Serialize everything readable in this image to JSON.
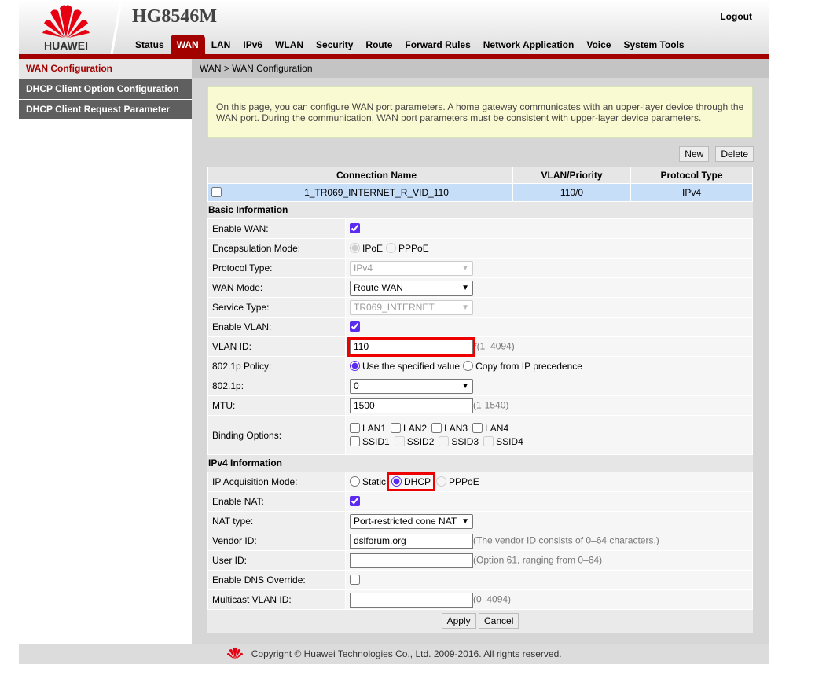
{
  "header": {
    "brand": "HUAWEI",
    "model": "HG8546M",
    "logout": "Logout",
    "tabs": [
      "Status",
      "WAN",
      "LAN",
      "IPv6",
      "WLAN",
      "Security",
      "Route",
      "Forward Rules",
      "Network Application",
      "Voice",
      "System Tools"
    ],
    "active_tab": "WAN"
  },
  "sidebar": {
    "items": [
      "WAN Configuration",
      "DHCP Client Option Configuration",
      "DHCP Client Request Parameter"
    ],
    "active": 0
  },
  "breadcrumb": "WAN > WAN Configuration",
  "info": "On this page, you can configure WAN port parameters. A home gateway communicates with an upper-layer device through the WAN port. During the communication, WAN port parameters must be consistent with upper-layer device parameters.",
  "buttons": {
    "new": "New",
    "delete": "Delete",
    "apply": "Apply",
    "cancel": "Cancel"
  },
  "connections": {
    "headers": [
      "Connection Name",
      "VLAN/Priority",
      "Protocol Type"
    ],
    "rows": [
      {
        "name": "1_TR069_INTERNET_R_VID_110",
        "vlan": "110/0",
        "protocol": "IPv4",
        "checked": false
      }
    ]
  },
  "basic": {
    "title": "Basic Information",
    "rows": [
      {
        "label": "Enable WAN:",
        "type": "checkbox",
        "checked": true
      },
      {
        "label": "Encapsulation Mode:",
        "type": "radio",
        "options": [
          "IPoE",
          "PPPoE"
        ],
        "selected": "IPoE",
        "disabled": true
      },
      {
        "label": "Protocol Type:",
        "type": "select",
        "value": "IPv4",
        "disabled": true
      },
      {
        "label": "WAN Mode:",
        "type": "select",
        "value": "Route WAN"
      },
      {
        "label": "Service Type:",
        "type": "select",
        "value": "TR069_INTERNET",
        "disabled": true
      },
      {
        "label": "Enable VLAN:",
        "type": "checkbox",
        "checked": true
      },
      {
        "label": "VLAN ID:",
        "type": "text",
        "value": "110",
        "required": "*",
        "hint": "(1–4094)",
        "highlight": true
      },
      {
        "label": "802.1p Policy:",
        "type": "radio",
        "options": [
          "Use the specified value",
          "Copy from IP precedence"
        ],
        "selected": "Use the specified value"
      },
      {
        "label": "802.1p:",
        "type": "select",
        "value": "0"
      },
      {
        "label": "MTU:",
        "type": "text",
        "value": "1500",
        "hint": "(1-1540)"
      },
      {
        "label": "Binding Options:",
        "type": "binding",
        "lan": [
          "LAN1",
          "LAN2",
          "LAN3",
          "LAN4"
        ],
        "ssid": [
          "SSID1",
          "SSID2",
          "SSID3",
          "SSID4"
        ],
        "ssid_disabled": [
          "SSID2",
          "SSID3",
          "SSID4"
        ]
      }
    ]
  },
  "ipv4": {
    "title": "IPv4 Information",
    "rows": [
      {
        "label": "IP Acquisition Mode:",
        "type": "radio",
        "options": [
          "Static",
          "DHCP",
          "PPPoE"
        ],
        "selected": "DHCP",
        "highlight_option": "DHCP",
        "disabled_options": [
          "PPPoE"
        ]
      },
      {
        "label": "Enable NAT:",
        "type": "checkbox",
        "checked": true
      },
      {
        "label": "NAT type:",
        "type": "select",
        "value": "Port-restricted cone NAT"
      },
      {
        "label": "Vendor ID:",
        "type": "text",
        "value": "dslforum.org",
        "hint": "(The vendor ID consists of 0–64 characters.)"
      },
      {
        "label": "User ID:",
        "type": "text",
        "value": "",
        "hint": "(Option 61, ranging from 0–64)"
      },
      {
        "label": "Enable DNS Override:",
        "type": "checkbox",
        "checked": false
      },
      {
        "label": "Multicast VLAN ID:",
        "type": "text",
        "value": "",
        "hint": "(0–4094)"
      }
    ]
  },
  "footer": "Copyright © Huawei Technologies Co., Ltd. 2009-2016. All rights reserved.",
  "colors": {
    "brand_red": "#a30000",
    "highlight": "#e00000",
    "selected_row": "#c7def8"
  }
}
